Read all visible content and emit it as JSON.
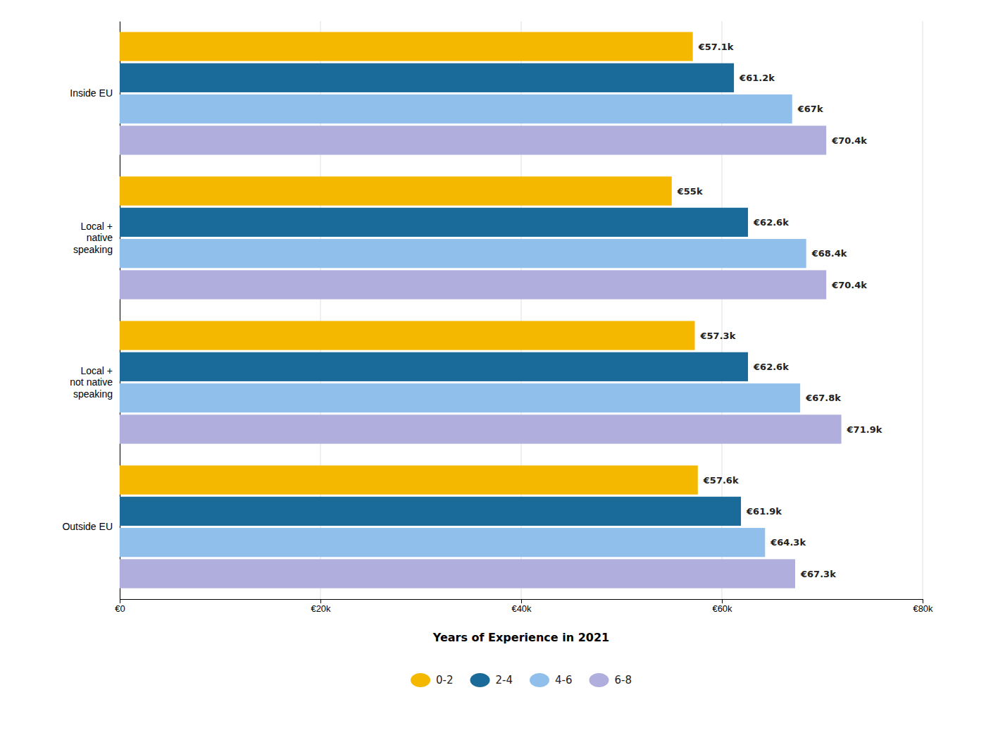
{
  "chart_data": {
    "type": "bar",
    "orientation": "horizontal",
    "categories": [
      "Inside EU",
      "Local +\nnative\nspeaking",
      "Local +\nnot native\nspeaking",
      "Outside EU"
    ],
    "series": [
      {
        "name": "0-2",
        "color": "#F5B800",
        "values": [
          57100,
          55000,
          57300,
          57600
        ],
        "value_labels": [
          "€57.1k",
          "€55k",
          "€57.3k",
          "€57.6k"
        ]
      },
      {
        "name": "2-4",
        "color": "#1A6B9A",
        "values": [
          61200,
          62600,
          62600,
          61900
        ],
        "value_labels": [
          "€61.2k",
          "€62.6k",
          "€62.6k",
          "€61.9k"
        ]
      },
      {
        "name": "4-6",
        "color": "#90BFEC",
        "values": [
          67000,
          68400,
          67800,
          64300
        ],
        "value_labels": [
          "€67k",
          "€68.4k",
          "€67.8k",
          "€64.3k"
        ]
      },
      {
        "name": "6-8",
        "color": "#B0AEDD",
        "values": [
          70400,
          70400,
          71900,
          67300
        ],
        "value_labels": [
          "€70.4k",
          "€70.4k",
          "€71.9k",
          "€67.3k"
        ]
      }
    ],
    "xlim": [
      0,
      80000
    ],
    "xticks": [
      {
        "value": 0,
        "label": "€0"
      },
      {
        "value": 20000,
        "label": "€20k"
      },
      {
        "value": 40000,
        "label": "€40k"
      },
      {
        "value": 60000,
        "label": "€60k"
      },
      {
        "value": 80000,
        "label": "€80k"
      }
    ],
    "xlabel": "Years of Experience in 2021",
    "grid": true,
    "legend": "bottom",
    "data_labels": true
  }
}
